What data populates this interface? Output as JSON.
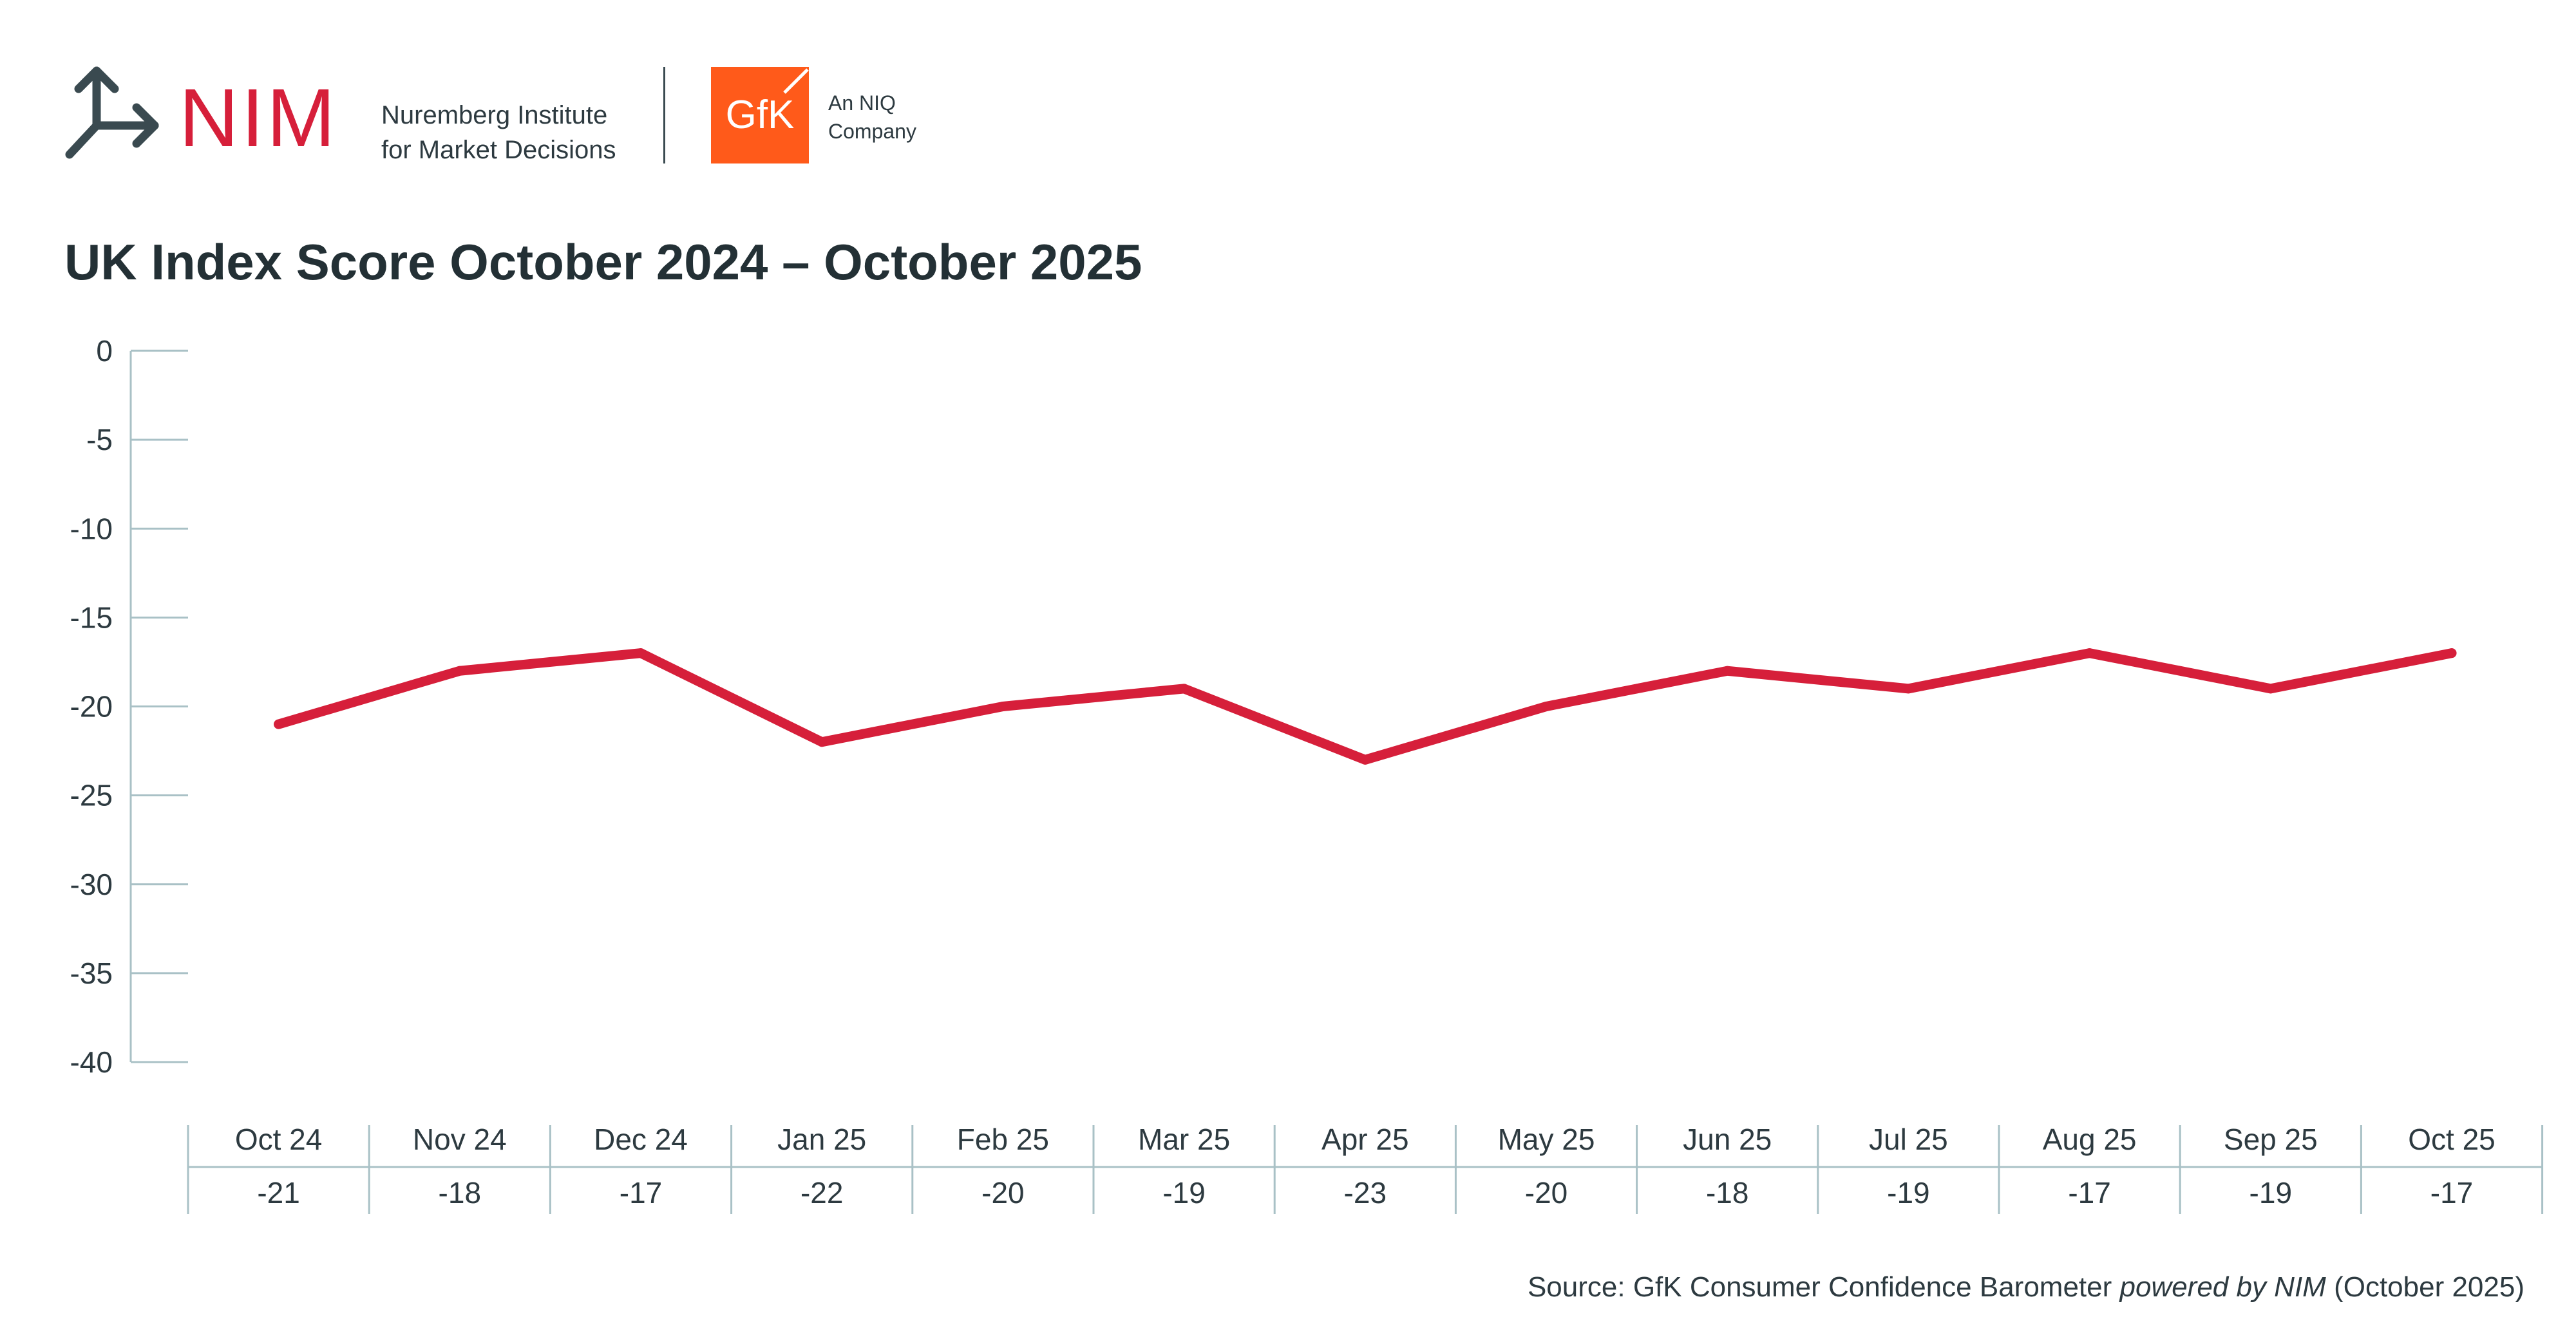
{
  "header": {
    "nim_word": "NIM",
    "nim_line1": "Nuremberg Institute",
    "nim_line2": "for Market Decisions",
    "gfk_word": "GfK",
    "gfk_tag1": "An NIQ",
    "gfk_tag2": "Company"
  },
  "colors": {
    "line": "#d61f3a",
    "axis": "#a9c1c6",
    "text": "#2d3a40",
    "gfk": "#ff5a1a"
  },
  "chart_data": {
    "type": "line",
    "title": "UK Index Score October 2024 – October 2025",
    "categories": [
      "Oct 24",
      "Nov 24",
      "Dec 24",
      "Jan 25",
      "Feb 25",
      "Mar 25",
      "Apr 25",
      "May 25",
      "Jun 25",
      "Jul 25",
      "Aug 25",
      "Sep 25",
      "Oct 25"
    ],
    "series": [
      {
        "name": "UK Index Score",
        "values": [
          -21,
          -18,
          -17,
          -22,
          -20,
          -19,
          -23,
          -20,
          -18,
          -19,
          -17,
          -19,
          -17
        ]
      }
    ],
    "table_values": [
      "-21",
      "-18",
      "-17",
      "-22",
      "-20",
      "-19",
      "-23",
      "-20",
      "-18",
      "-19",
      "-17",
      "-19",
      "-17"
    ],
    "ylim": [
      -40,
      0
    ],
    "yticks": [
      0,
      -5,
      -10,
      -15,
      -20,
      -25,
      -30,
      -35,
      -40
    ],
    "ytick_labels": [
      "0",
      "-5",
      "-10",
      "-15",
      "-20",
      "-25",
      "-30",
      "-35",
      "-40"
    ],
    "xlabel": "",
    "ylabel": "",
    "grid": false,
    "legend": "none"
  },
  "source": {
    "prefix": "Source: GfK Consumer Confidence Barometer ",
    "italic": "powered by NIM",
    "suffix": " (October 2025)"
  }
}
